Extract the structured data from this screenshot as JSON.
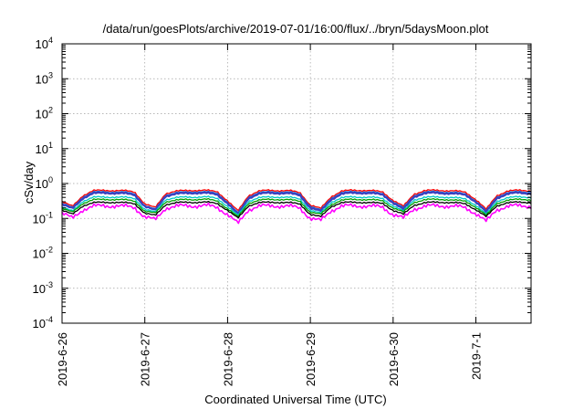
{
  "chart_data": {
    "type": "line",
    "title": "/data/run/goesPlots/archive/2019-07-01/16:00/flux/../bryn/5daysMoon.plot",
    "xlabel": "Coordinated Universal Time (UTC)",
    "ylabel": "cSv/day",
    "yscale": "log",
    "ylim": [
      0.0001,
      10000
    ],
    "xlim": [
      "2019-06-26",
      "2019-07-01T16:00"
    ],
    "grid": true,
    "x_ticks": [
      "2019-6-26",
      "2019-6-27",
      "2019-6-28",
      "2019-6-29",
      "2019-6-30",
      "2019-7-1"
    ],
    "y_ticks": [
      {
        "base": "10",
        "exp": "-4"
      },
      {
        "base": "10",
        "exp": "-3"
      },
      {
        "base": "10",
        "exp": "-2"
      },
      {
        "base": "10",
        "exp": "-1"
      },
      {
        "base": "10",
        "exp": "0"
      },
      {
        "base": "10",
        "exp": "1"
      },
      {
        "base": "10",
        "exp": "2"
      },
      {
        "base": "10",
        "exp": "3"
      },
      {
        "base": "10",
        "exp": "4"
      }
    ],
    "profile_x": [
      "2019-06-26T00:00",
      "2019-06-26T03:00",
      "2019-06-26T06:00",
      "2019-06-26T09:00",
      "2019-06-26T12:00",
      "2019-06-26T15:00",
      "2019-06-26T18:00",
      "2019-06-26T21:00",
      "2019-06-27T00:00",
      "2019-06-27T03:00",
      "2019-06-27T06:00",
      "2019-06-27T09:00",
      "2019-06-27T12:00",
      "2019-06-27T15:00",
      "2019-06-27T18:00",
      "2019-06-27T21:00",
      "2019-06-28T00:00",
      "2019-06-28T03:00",
      "2019-06-28T06:00",
      "2019-06-28T09:00",
      "2019-06-28T12:00",
      "2019-06-28T15:00",
      "2019-06-28T18:00",
      "2019-06-28T21:00",
      "2019-06-29T00:00",
      "2019-06-29T03:00",
      "2019-06-29T06:00",
      "2019-06-29T09:00",
      "2019-06-29T12:00",
      "2019-06-29T15:00",
      "2019-06-29T18:00",
      "2019-06-29T21:00",
      "2019-06-30T00:00",
      "2019-06-30T03:00",
      "2019-06-30T06:00",
      "2019-06-30T09:00",
      "2019-06-30T12:00",
      "2019-06-30T15:00",
      "2019-06-30T18:00",
      "2019-06-30T21:00",
      "2019-07-01T00:00",
      "2019-07-01T03:00",
      "2019-07-01T06:00",
      "2019-07-01T09:00",
      "2019-07-01T12:00",
      "2019-07-01T15:00",
      "2019-07-01T16:00"
    ],
    "series": [
      {
        "color": "#ff0000",
        "values": [
          0.3,
          0.22,
          0.45,
          0.62,
          0.64,
          0.63,
          0.62,
          0.58,
          0.26,
          0.2,
          0.52,
          0.6,
          0.63,
          0.64,
          0.63,
          0.59,
          0.32,
          0.16,
          0.45,
          0.6,
          0.64,
          0.63,
          0.62,
          0.55,
          0.24,
          0.19,
          0.42,
          0.6,
          0.64,
          0.64,
          0.62,
          0.57,
          0.33,
          0.22,
          0.5,
          0.62,
          0.64,
          0.63,
          0.61,
          0.56,
          0.35,
          0.18,
          0.45,
          0.6,
          0.64,
          0.63,
          0.62
        ]
      },
      {
        "color": "#1f6fd8",
        "values": [
          0.27,
          0.2,
          0.41,
          0.56,
          0.58,
          0.57,
          0.56,
          0.52,
          0.23,
          0.18,
          0.47,
          0.54,
          0.57,
          0.58,
          0.57,
          0.53,
          0.29,
          0.14,
          0.41,
          0.54,
          0.58,
          0.57,
          0.56,
          0.5,
          0.22,
          0.17,
          0.38,
          0.54,
          0.58,
          0.58,
          0.56,
          0.51,
          0.3,
          0.2,
          0.45,
          0.56,
          0.58,
          0.57,
          0.55,
          0.5,
          0.32,
          0.16,
          0.41,
          0.54,
          0.58,
          0.57,
          0.56
        ]
      },
      {
        "color": "#3a3fbf",
        "values": [
          0.25,
          0.19,
          0.38,
          0.52,
          0.54,
          0.53,
          0.52,
          0.48,
          0.22,
          0.17,
          0.44,
          0.5,
          0.53,
          0.54,
          0.53,
          0.49,
          0.27,
          0.13,
          0.38,
          0.5,
          0.54,
          0.53,
          0.52,
          0.46,
          0.2,
          0.16,
          0.35,
          0.5,
          0.54,
          0.54,
          0.52,
          0.48,
          0.28,
          0.18,
          0.42,
          0.52,
          0.54,
          0.53,
          0.51,
          0.47,
          0.3,
          0.15,
          0.38,
          0.5,
          0.54,
          0.53,
          0.52
        ]
      },
      {
        "color": "#00c8c8",
        "values": [
          0.21,
          0.16,
          0.31,
          0.4,
          0.41,
          0.41,
          0.4,
          0.38,
          0.18,
          0.15,
          0.35,
          0.39,
          0.41,
          0.41,
          0.41,
          0.38,
          0.22,
          0.12,
          0.31,
          0.39,
          0.41,
          0.41,
          0.4,
          0.36,
          0.17,
          0.14,
          0.29,
          0.39,
          0.41,
          0.41,
          0.4,
          0.37,
          0.23,
          0.16,
          0.34,
          0.4,
          0.41,
          0.41,
          0.39,
          0.36,
          0.24,
          0.13,
          0.31,
          0.39,
          0.41,
          0.41,
          0.4
        ]
      },
      {
        "color": "#00a000",
        "values": [
          0.19,
          0.15,
          0.27,
          0.34,
          0.35,
          0.35,
          0.34,
          0.32,
          0.16,
          0.14,
          0.3,
          0.33,
          0.35,
          0.35,
          0.35,
          0.32,
          0.19,
          0.11,
          0.27,
          0.33,
          0.35,
          0.35,
          0.34,
          0.31,
          0.15,
          0.13,
          0.25,
          0.33,
          0.35,
          0.35,
          0.34,
          0.32,
          0.2,
          0.15,
          0.29,
          0.34,
          0.35,
          0.35,
          0.33,
          0.31,
          0.21,
          0.12,
          0.27,
          0.33,
          0.35,
          0.35,
          0.34
        ]
      },
      {
        "color": "#000000",
        "values": [
          0.17,
          0.13,
          0.23,
          0.28,
          0.29,
          0.29,
          0.28,
          0.27,
          0.14,
          0.12,
          0.25,
          0.28,
          0.29,
          0.29,
          0.29,
          0.27,
          0.17,
          0.1,
          0.23,
          0.28,
          0.29,
          0.29,
          0.28,
          0.26,
          0.13,
          0.11,
          0.22,
          0.28,
          0.29,
          0.29,
          0.28,
          0.27,
          0.17,
          0.13,
          0.24,
          0.28,
          0.29,
          0.29,
          0.28,
          0.26,
          0.18,
          0.11,
          0.23,
          0.28,
          0.29,
          0.29,
          0.28
        ]
      },
      {
        "color": "#ff00ff",
        "values": [
          0.14,
          0.1,
          0.18,
          0.22,
          0.23,
          0.23,
          0.22,
          0.21,
          0.11,
          0.09,
          0.2,
          0.22,
          0.23,
          0.23,
          0.23,
          0.21,
          0.13,
          0.07,
          0.18,
          0.22,
          0.23,
          0.23,
          0.22,
          0.2,
          0.1,
          0.085,
          0.17,
          0.22,
          0.23,
          0.23,
          0.22,
          0.21,
          0.13,
          0.1,
          0.19,
          0.22,
          0.23,
          0.23,
          0.22,
          0.2,
          0.14,
          0.08,
          0.18,
          0.22,
          0.23,
          0.23,
          0.22
        ]
      }
    ]
  }
}
